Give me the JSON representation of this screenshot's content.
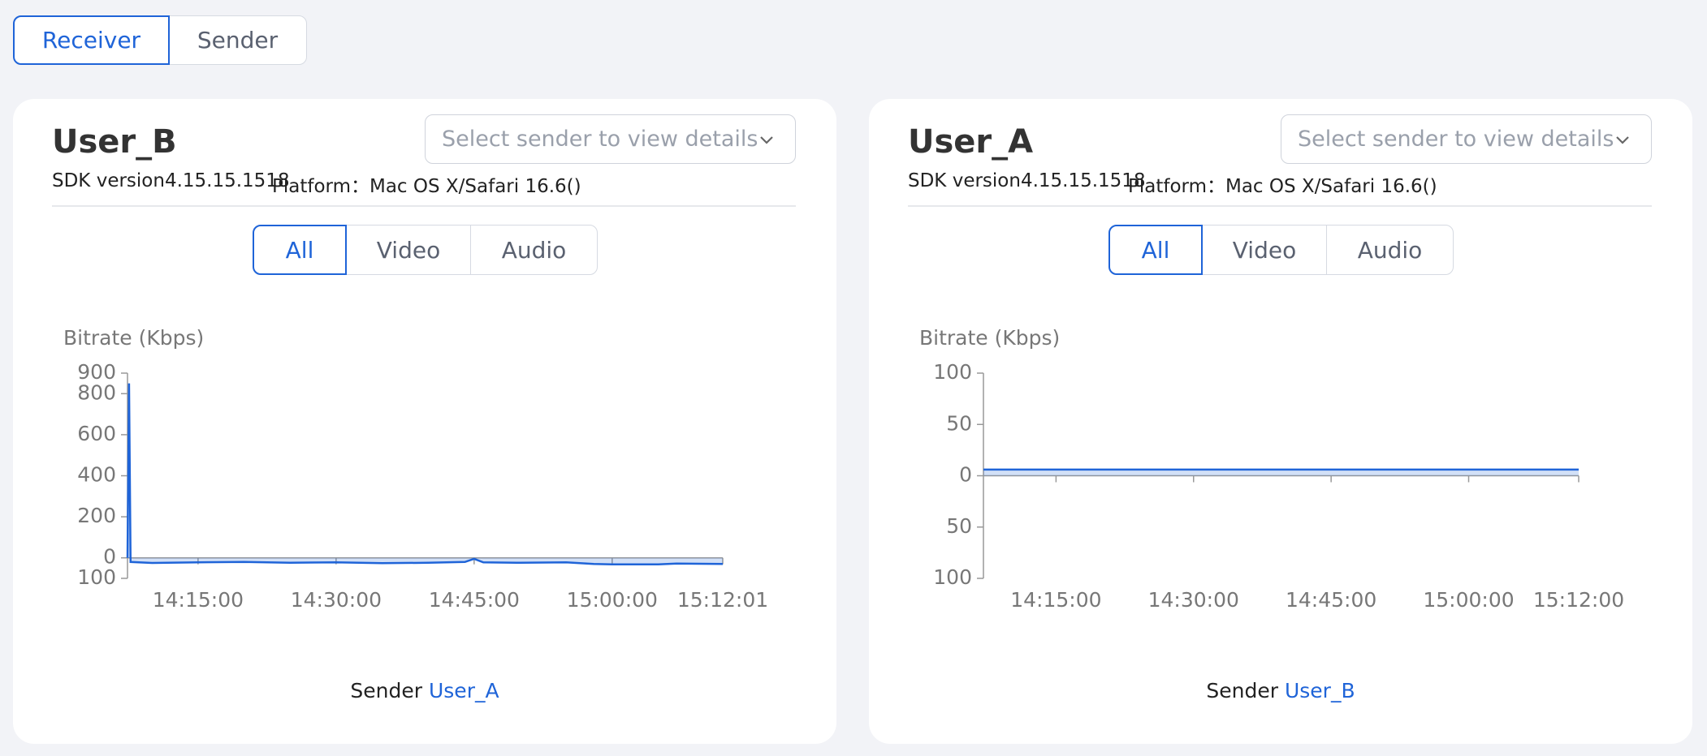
{
  "tabs": [
    "Receiver",
    "Sender"
  ],
  "panels": [
    {
      "title": "User_B",
      "sdk": "SDK version4.15.15.1518",
      "platform": "Platform：Mac OS X/Safari 16.6()",
      "select_placeholder": "Select sender to view details",
      "segments": [
        "All",
        "Video",
        "Audio"
      ],
      "sender_label": "Sender",
      "sender_name": "User_A",
      "chart": {
        "type": "line",
        "y_label": "Bitrate (Kbps)",
        "xlim": [
          "14:07:20",
          "15:12:01"
        ],
        "xticks": [
          "14:15:00",
          "14:30:00",
          "14:45:00",
          "15:00:00",
          "15:12:01"
        ],
        "ylim": [
          -100,
          900
        ],
        "yticks": [
          {
            "value": -100,
            "label": "100"
          },
          0,
          200,
          400,
          600,
          800,
          900
        ],
        "x": [
          "14:07:20",
          "14:07:30",
          "14:07:40",
          "14:10:00",
          "14:15:00",
          "14:20:00",
          "14:25:00",
          "14:30:00",
          "14:35:00",
          "14:40:00",
          "14:44:00",
          "14:45:00",
          "14:46:00",
          "14:50:00",
          "14:55:00",
          "14:58:00",
          "15:00:00",
          "15:05:00",
          "15:07:00",
          "15:12:01"
        ],
        "series": [
          {
            "color": "#1f64d8",
            "values": [
              0,
              850,
              -20,
              -25,
              -22,
              -20,
              -24,
              -22,
              -26,
              -24,
              -20,
              -5,
              -22,
              -24,
              -22,
              -30,
              -32,
              -32,
              -28,
              -30
            ]
          }
        ]
      }
    },
    {
      "title": "User_A",
      "sdk": "SDK version4.15.15.1518",
      "platform": "Platform：Mac OS X/Safari 16.6()",
      "select_placeholder": "Select sender to view details",
      "segments": [
        "All",
        "Video",
        "Audio"
      ],
      "sender_label": "Sender",
      "sender_name": "User_B",
      "chart": {
        "type": "line",
        "y_label": "Bitrate (Kbps)",
        "xlim": [
          "14:07:05",
          "15:12:00"
        ],
        "xticks": [
          "14:15:00",
          "14:30:00",
          "14:45:00",
          "15:00:00",
          "15:12:00"
        ],
        "ylim": [
          -100,
          100
        ],
        "yticks": [
          {
            "value": -100,
            "label": "100"
          },
          {
            "value": -50,
            "label": "50"
          },
          0,
          50,
          100
        ],
        "x": [
          "14:07:05",
          "14:15:00",
          "14:30:00",
          "14:45:00",
          "15:00:00",
          "15:12:00"
        ],
        "series": [
          {
            "color": "#1f64d8",
            "values": [
              6,
              6,
              6,
              6,
              6,
              6
            ]
          }
        ]
      }
    }
  ]
}
